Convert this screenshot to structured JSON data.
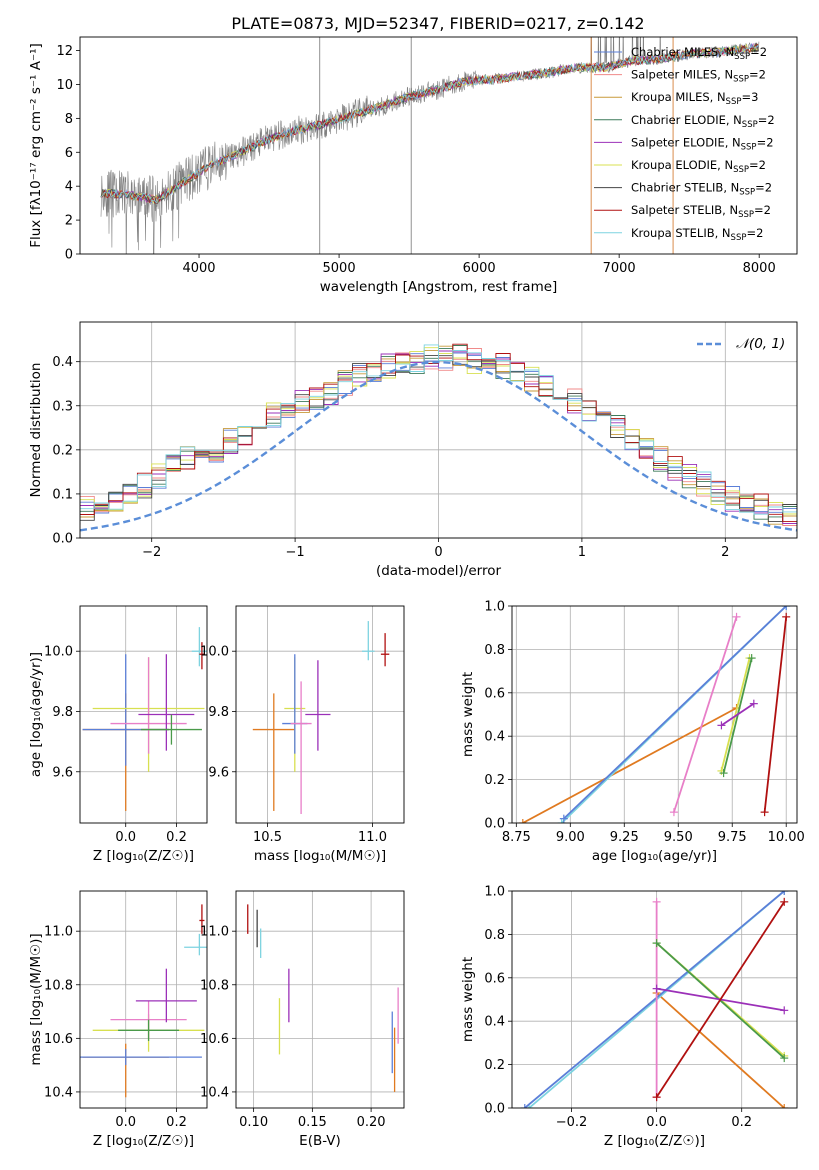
{
  "figure": {
    "title": "PLATE=0873, MJD=52347, FIBERID=0217, z=0.142"
  },
  "chart_data": [
    {
      "id": "spectrum",
      "type": "line",
      "xlabel": "wavelength [Angstrom, rest frame]",
      "ylabel": "Flux [fλ10⁻¹⁷ erg cm⁻² s⁻¹ A⁻¹]",
      "xlim": [
        3150,
        8270
      ],
      "ylim": [
        0,
        12.8
      ],
      "xticks": [
        "4000",
        "5000",
        "6000",
        "7000",
        "8000"
      ],
      "yticks": [
        "0",
        "2",
        "4",
        "6",
        "8",
        "10",
        "12"
      ],
      "grid": false,
      "legend_position": "top-right",
      "observed_color": "#808080",
      "continuum_knots": {
        "x": [
          3300,
          3500,
          3700,
          3900,
          4100,
          4300,
          4500,
          4700,
          4900,
          5100,
          5300,
          5500,
          5700,
          5900,
          6100,
          6300,
          6500,
          6700,
          6900,
          7100,
          7300,
          7500,
          7700,
          7900,
          8000
        ],
        "y": [
          3.6,
          3.5,
          3.2,
          4.3,
          5.3,
          6.0,
          6.8,
          7.3,
          7.7,
          8.2,
          8.7,
          9.3,
          9.7,
          10.2,
          10.3,
          10.5,
          10.7,
          11.0,
          11.0,
          11.4,
          11.5,
          11.8,
          11.9,
          12.1,
          12.2
        ]
      },
      "series": [
        {
          "name": "Chabrier MILES, N",
          "sub": "SSP",
          "suffix": "=2",
          "color": "#5b7fd8"
        },
        {
          "name": "Salpeter MILES, N",
          "sub": "SSP",
          "suffix": "=2",
          "color": "#f08a8a"
        },
        {
          "name": "Kroupa MILES, N",
          "sub": "SSP",
          "suffix": "=3",
          "color": "#c89a3a"
        },
        {
          "name": "Chabrier ELODIE, N",
          "sub": "SSP",
          "suffix": "=2",
          "color": "#3d7a5a"
        },
        {
          "name": "Salpeter ELODIE, N",
          "sub": "SSP",
          "suffix": "=2",
          "color": "#9b30b8"
        },
        {
          "name": "Kroupa ELODIE, N",
          "sub": "SSP",
          "suffix": "=2",
          "color": "#d8e050"
        },
        {
          "name": "Chabrier STELIB, N",
          "sub": "SSP",
          "suffix": "=2",
          "color": "#444444"
        },
        {
          "name": "Salpeter STELIB, N",
          "sub": "SSP",
          "suffix": "=2",
          "color": "#b01010"
        },
        {
          "name": "Kroupa STELIB, N",
          "sub": "SSP",
          "suffix": "=2",
          "color": "#7dd3e0"
        }
      ]
    },
    {
      "id": "residuals",
      "type": "line",
      "xlabel": "(data-model)/error",
      "ylabel": "Normed distribution",
      "xlim": [
        -2.5,
        2.5
      ],
      "ylim": [
        0,
        0.49
      ],
      "xticks": [
        "−2",
        "−1",
        "0",
        "1",
        "2"
      ],
      "yticks": [
        "0.0",
        "0.1",
        "0.2",
        "0.3",
        "0.4"
      ],
      "grid": true,
      "legend_position": "top-right",
      "reference_curve": {
        "name": "𝒩(0, 1)",
        "color": "#5b8ed8",
        "mu": 0,
        "sigma": 1
      },
      "bin_width": 0.1,
      "bin_heights": [
        0.03,
        0.035,
        0.04,
        0.05,
        0.06,
        0.07,
        0.08,
        0.09,
        0.1,
        0.12,
        0.14,
        0.16,
        0.18,
        0.19,
        0.2,
        0.22,
        0.24,
        0.26,
        0.28,
        0.3,
        0.31,
        0.32,
        0.33,
        0.35,
        0.37,
        0.38,
        0.39,
        0.4,
        0.4,
        0.41,
        0.41,
        0.41,
        0.4,
        0.4,
        0.39,
        0.38,
        0.36,
        0.34,
        0.33,
        0.31,
        0.29,
        0.27,
        0.25,
        0.23,
        0.21,
        0.18,
        0.16,
        0.14,
        0.12,
        0.1,
        0.09,
        0.08,
        0.07,
        0.06,
        0.05,
        0.04,
        0.035,
        0.03,
        0.03,
        0.03
      ]
    },
    {
      "id": "age-vs-Z",
      "type": "scatter",
      "xlabel": "Z [log₁₀(Z/Z☉)]",
      "ylabel": "age  [log₁₀(age/yr)]",
      "xlim": [
        -0.18,
        0.32
      ],
      "ylim": [
        9.43,
        10.15
      ],
      "xticks": [
        "0.0",
        "0.2"
      ],
      "yticks": [
        "9.6",
        "9.8",
        "10.0"
      ],
      "grid": true,
      "points": [
        {
          "x": 0.0,
          "y": 9.74,
          "xerr": 0.17,
          "yerr": [
            0.27,
            0.12
          ],
          "color": "#e07a20"
        },
        {
          "x": 0.0,
          "y": 9.74,
          "xerr": 0.17,
          "yerr": [
            0.12,
            0.25
          ],
          "color": "#5b7fd8"
        },
        {
          "x": 0.09,
          "y": 9.81,
          "xerr": 0.22,
          "yerr": [
            0.21,
            0.17
          ],
          "color": "#d8e050"
        },
        {
          "x": 0.09,
          "y": 9.76,
          "xerr": 0.15,
          "yerr": [
            0.1,
            0.22
          ],
          "color": "#e87fc8"
        },
        {
          "x": 0.16,
          "y": 9.79,
          "xerr": 0.11,
          "yerr": [
            0.12,
            0.2
          ],
          "color": "#9b30b8"
        },
        {
          "x": 0.18,
          "y": 9.74,
          "xerr": 0.12,
          "yerr": [
            0.05,
            0.05
          ],
          "color": "#4a9a4a"
        },
        {
          "x": 0.29,
          "y": 10.0,
          "xerr": 0.03,
          "yerr": [
            0.05,
            0.08
          ],
          "color": "#7dd3e0"
        },
        {
          "x": 0.3,
          "y": 9.99,
          "xerr": 0.01,
          "yerr": [
            0.05,
            0.04
          ],
          "color": "#b01010"
        }
      ]
    },
    {
      "id": "age-vs-mass",
      "type": "scatter",
      "xlabel": "mass [log₁₀(M/M☉)]",
      "ylabel": "",
      "xlim": [
        10.35,
        11.15
      ],
      "ylim": [
        9.43,
        10.15
      ],
      "xticks": [
        "10.5",
        "11.0"
      ],
      "yticks": [
        "9.6",
        "9.8",
        "10.0"
      ],
      "grid": true,
      "points": [
        {
          "x": 10.53,
          "y": 9.74,
          "xerr": 0.1,
          "yerr": [
            0.27,
            0.12
          ],
          "color": "#e07a20"
        },
        {
          "x": 10.63,
          "y": 9.81,
          "xerr": 0.05,
          "yerr": [
            0.21,
            0.17
          ],
          "color": "#d8e050"
        },
        {
          "x": 10.63,
          "y": 9.76,
          "xerr": 0.06,
          "yerr": [
            0.1,
            0.23
          ],
          "color": "#5b7fd8"
        },
        {
          "x": 10.66,
          "y": 9.76,
          "xerr": 0.05,
          "yerr": [
            0.3,
            0.14
          ],
          "color": "#e87fc8"
        },
        {
          "x": 10.74,
          "y": 9.79,
          "xerr": 0.06,
          "yerr": [
            0.12,
            0.18
          ],
          "color": "#9b30b8"
        },
        {
          "x": 10.98,
          "y": 10.0,
          "xerr": 0.03,
          "yerr": [
            0.03,
            0.1
          ],
          "color": "#7dd3e0"
        },
        {
          "x": 11.06,
          "y": 9.99,
          "xerr": 0.02,
          "yerr": [
            0.04,
            0.07
          ],
          "color": "#b01010"
        }
      ]
    },
    {
      "id": "massweight-vs-age",
      "type": "line",
      "xlabel": "age  [log₁₀(age/yr)]",
      "ylabel": "mass weight",
      "xlim": [
        8.73,
        10.05
      ],
      "ylim": [
        0,
        1
      ],
      "xticks": [
        "8.75",
        "9.00",
        "9.25",
        "9.50",
        "9.75",
        "10.00"
      ],
      "yticks": [
        "0.0",
        "0.2",
        "0.4",
        "0.6",
        "0.8",
        "1.0"
      ],
      "grid": true,
      "lines": [
        {
          "x": [
            8.78,
            9.77
          ],
          "y": [
            0.0,
            0.53
          ],
          "color": "#e07a20"
        },
        {
          "x": [
            8.96,
            10.0
          ],
          "y": [
            0.0,
            1.0
          ],
          "color": "#7dd3e0"
        },
        {
          "x": [
            8.97,
            10.0
          ],
          "y": [
            0.02,
            1.0
          ],
          "color": "#5b7fd8"
        },
        {
          "x": [
            9.48,
            9.77
          ],
          "y": [
            0.05,
            0.95
          ],
          "color": "#e87fc8"
        },
        {
          "x": [
            9.7,
            9.83
          ],
          "y": [
            0.24,
            0.76
          ],
          "color": "#d8e050"
        },
        {
          "x": [
            9.71,
            9.84
          ],
          "y": [
            0.23,
            0.76
          ],
          "color": "#4a9a4a"
        },
        {
          "x": [
            9.7,
            9.85
          ],
          "y": [
            0.45,
            0.55
          ],
          "color": "#9b30b8"
        },
        {
          "x": [
            9.9,
            10.0
          ],
          "y": [
            0.05,
            0.95
          ],
          "color": "#b01010"
        }
      ]
    },
    {
      "id": "mass-vs-Z",
      "type": "scatter",
      "xlabel": "Z [log₁₀(Z/Z☉)]",
      "ylabel": "mass [log₁₀(M/M☉)]",
      "xlim": [
        -0.18,
        0.32
      ],
      "ylim": [
        10.34,
        11.15
      ],
      "xticks": [
        "0.0",
        "0.2"
      ],
      "yticks": [
        "10.4",
        "10.6",
        "10.8",
        "11.0"
      ],
      "grid": true,
      "points": [
        {
          "x": 0.0,
          "y": 10.53,
          "xerr": 0.17,
          "yerr": [
            0.15,
            0.05
          ],
          "color": "#e07a20"
        },
        {
          "x": 0.0,
          "y": 10.53,
          "xerr": 0.3,
          "yerr": [
            0.03,
            0.03
          ],
          "color": "#5b7fd8"
        },
        {
          "x": 0.09,
          "y": 10.63,
          "xerr": 0.22,
          "yerr": [
            0.08,
            0.06
          ],
          "color": "#d8e050"
        },
        {
          "x": 0.09,
          "y": 10.67,
          "xerr": 0.15,
          "yerr": [
            0.07,
            0.07
          ],
          "color": "#e87fc8"
        },
        {
          "x": 0.09,
          "y": 10.63,
          "xerr": 0.12,
          "yerr": [
            0.04,
            0.04
          ],
          "color": "#4a9a4a"
        },
        {
          "x": 0.16,
          "y": 10.74,
          "xerr": 0.12,
          "yerr": [
            0.08,
            0.12
          ],
          "color": "#9b30b8"
        },
        {
          "x": 0.29,
          "y": 10.94,
          "xerr": 0.06,
          "yerr": [
            0.03,
            0.05
          ],
          "color": "#7dd3e0"
        },
        {
          "x": 0.3,
          "y": 11.04,
          "xerr": 0.01,
          "yerr": [
            0.05,
            0.06
          ],
          "color": "#b01010"
        }
      ]
    },
    {
      "id": "mass-vs-ebv",
      "type": "scatter",
      "xlabel": "E(B-V)",
      "ylabel": "",
      "xlim": [
        0.085,
        0.228
      ],
      "ylim": [
        10.34,
        11.15
      ],
      "xticks": [
        "0.10",
        "0.15",
        "0.20"
      ],
      "yticks": [
        "10.4",
        "10.6",
        "10.8",
        "11.0"
      ],
      "grid": true,
      "points": [
        {
          "x": 0.095,
          "y": 11.04,
          "xerr": 0,
          "yerr": [
            0.05,
            0.06
          ],
          "color": "#b01010"
        },
        {
          "x": 0.103,
          "y": 10.98,
          "xerr": 0,
          "yerr": [
            0.04,
            0.1
          ],
          "color": "#444444"
        },
        {
          "x": 0.106,
          "y": 10.95,
          "xerr": 0,
          "yerr": [
            0.05,
            0.06
          ],
          "color": "#7dd3e0"
        },
        {
          "x": 0.122,
          "y": 10.63,
          "xerr": 0,
          "yerr": [
            0.09,
            0.12
          ],
          "color": "#d8e050"
        },
        {
          "x": 0.13,
          "y": 10.74,
          "xerr": 0,
          "yerr": [
            0.08,
            0.12
          ],
          "color": "#9b30b8"
        },
        {
          "x": 0.218,
          "y": 10.61,
          "xerr": 0,
          "yerr": [
            0.14,
            0.09
          ],
          "color": "#5b7fd8"
        },
        {
          "x": 0.22,
          "y": 10.56,
          "xerr": 0,
          "yerr": [
            0.16,
            0.08
          ],
          "color": "#e07a20"
        },
        {
          "x": 0.223,
          "y": 10.66,
          "xerr": 0,
          "yerr": [
            0.08,
            0.13
          ],
          "color": "#e87fc8"
        }
      ]
    },
    {
      "id": "massweight-vs-Z",
      "type": "line",
      "xlabel": "Z [log₁₀(Z/Z☉)]",
      "ylabel": "mass weight",
      "xlim": [
        -0.34,
        0.33
      ],
      "ylim": [
        0,
        1
      ],
      "xticks": [
        "−0.2",
        "0.0",
        "0.2"
      ],
      "yticks": [
        "0.0",
        "0.2",
        "0.4",
        "0.6",
        "0.8",
        "1.0"
      ],
      "grid": true,
      "lines": [
        {
          "x": [
            0.0,
            0.3
          ],
          "y": [
            0.53,
            0.0
          ],
          "color": "#e07a20"
        },
        {
          "x": [
            -0.3,
            0.3
          ],
          "y": [
            0.0,
            1.0
          ],
          "color": "#7dd3e0"
        },
        {
          "x": [
            -0.31,
            0.3
          ],
          "y": [
            0.0,
            1.0
          ],
          "color": "#5b7fd8"
        },
        {
          "x": [
            0.0,
            0.0
          ],
          "y": [
            0.05,
            0.95
          ],
          "color": "#e87fc8"
        },
        {
          "x": [
            0.0,
            0.3
          ],
          "y": [
            0.76,
            0.24
          ],
          "color": "#d8e050"
        },
        {
          "x": [
            0.0,
            0.3
          ],
          "y": [
            0.76,
            0.23
          ],
          "color": "#4a9a4a"
        },
        {
          "x": [
            0.0,
            0.3
          ],
          "y": [
            0.55,
            0.45
          ],
          "color": "#9b30b8"
        },
        {
          "x": [
            0.0,
            0.3
          ],
          "y": [
            0.05,
            0.95
          ],
          "color": "#b01010"
        }
      ]
    }
  ]
}
